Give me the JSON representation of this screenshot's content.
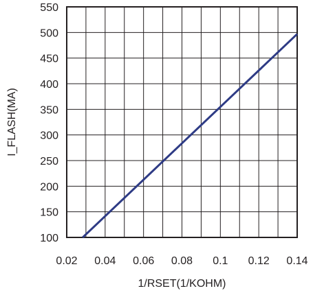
{
  "chart_data": {
    "type": "line",
    "title": "",
    "xlabel": "1/RSET(1/KOHM)",
    "ylabel": "I_FLASH(MA)",
    "xlim": [
      0.02,
      0.14
    ],
    "ylim": [
      100,
      550
    ],
    "x_ticks": [
      0.02,
      0.04,
      0.06,
      0.08,
      0.1,
      0.12,
      0.14
    ],
    "x_tick_labels": [
      "0.02",
      "0.04",
      "0.06",
      "0.08",
      "0.1",
      "0.12",
      "0.14"
    ],
    "y_ticks": [
      100,
      150,
      200,
      250,
      300,
      350,
      400,
      450,
      500,
      550
    ],
    "y_tick_labels": [
      "100",
      "150",
      "200",
      "250",
      "300",
      "350",
      "400",
      "450",
      "500",
      "550"
    ],
    "grid": true,
    "x_minor_divisions": 2,
    "series": [
      {
        "x": [
          0.0283,
          0.14
        ],
        "y": [
          100,
          497
        ]
      }
    ],
    "colors": {
      "line": "#2e3b85",
      "grid": "#231f20",
      "frame": "#231f20"
    }
  }
}
